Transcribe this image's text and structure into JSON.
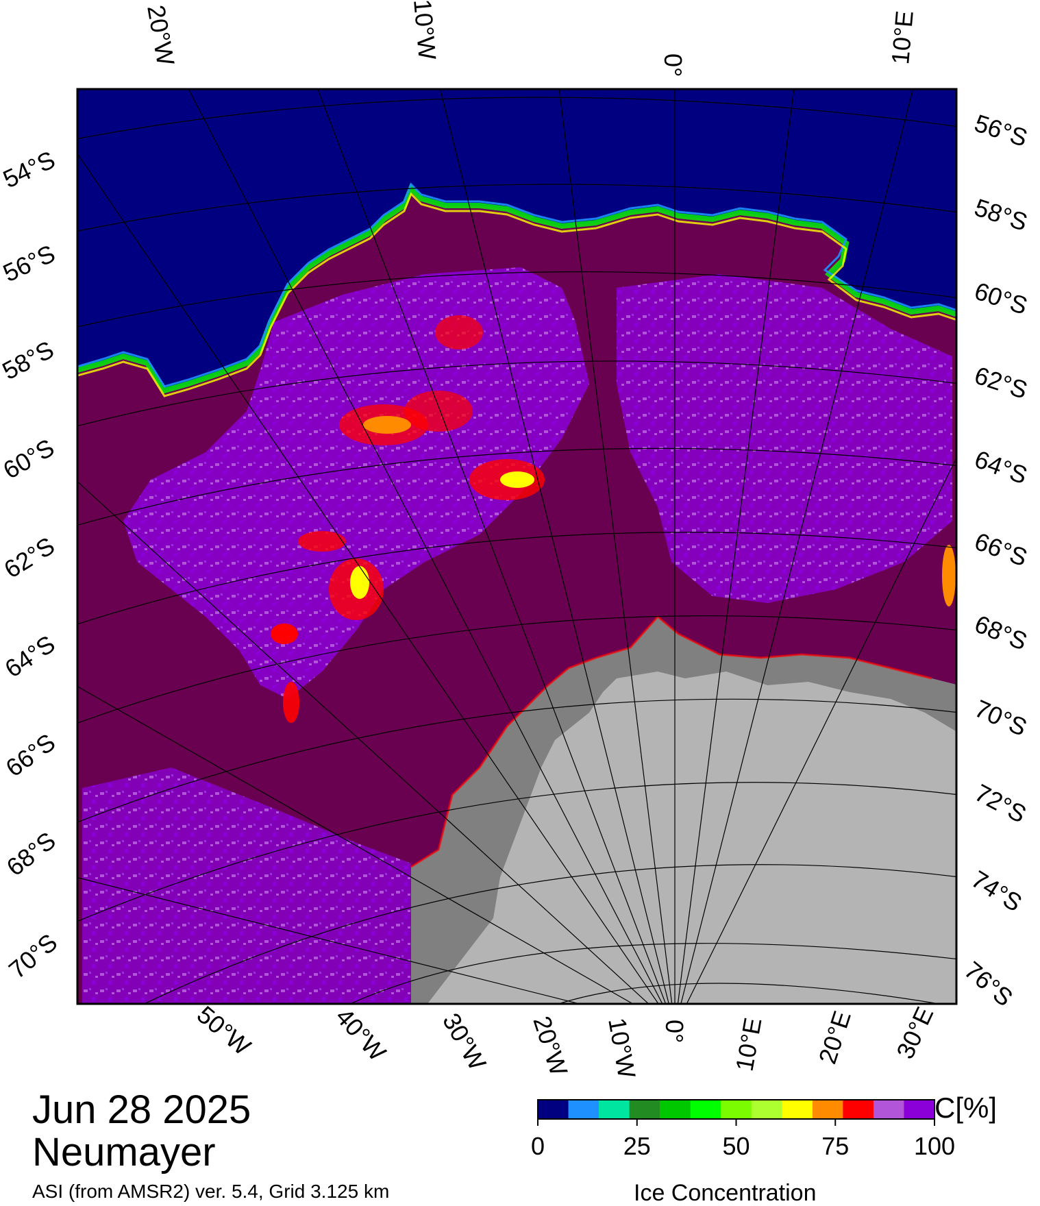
{
  "labels": {
    "date": "Jun 28 2025",
    "station": "Neumayer",
    "source": "ASI (from AMSR2) ver. 5.4,  Grid 3.125 km",
    "colorbar_title": "Ice Concentration",
    "colorbar_unit": "C[%]"
  },
  "top_lon_labels": [
    "20°W",
    "10°W",
    "0°",
    "10°E"
  ],
  "bottom_lon_labels": [
    "50°W",
    "40°W",
    "30°W",
    "20°W",
    "10°W",
    "0°",
    "10°E",
    "20°E",
    "30°E"
  ],
  "left_lat_labels": [
    "54°S",
    "56°S",
    "58°S",
    "60°S",
    "62°S",
    "64°S",
    "66°S",
    "68°S",
    "70°S"
  ],
  "right_lat_labels": [
    "56°S",
    "58°S",
    "60°S",
    "62°S",
    "64°S",
    "66°S",
    "68°S",
    "70°S",
    "72°S",
    "74°S",
    "76°S"
  ],
  "colorbar": {
    "ticks": [
      "0",
      "25",
      "50",
      "75",
      "100"
    ],
    "colors": [
      "#000080",
      "#1e90ff",
      "#00e5a0",
      "#228b22",
      "#00c800",
      "#00ff00",
      "#7cfc00",
      "#adff2f",
      "#ffff00",
      "#ff8c00",
      "#ff0000",
      "#b255d8",
      "#8b00d8"
    ]
  },
  "colors": {
    "open_water": "#000080",
    "ice_100": "#6a0050",
    "ice_95": "#8b00d8",
    "ice_90": "#b255d8",
    "land": "#b4b4b4",
    "ice_shelf": "#808080"
  }
}
